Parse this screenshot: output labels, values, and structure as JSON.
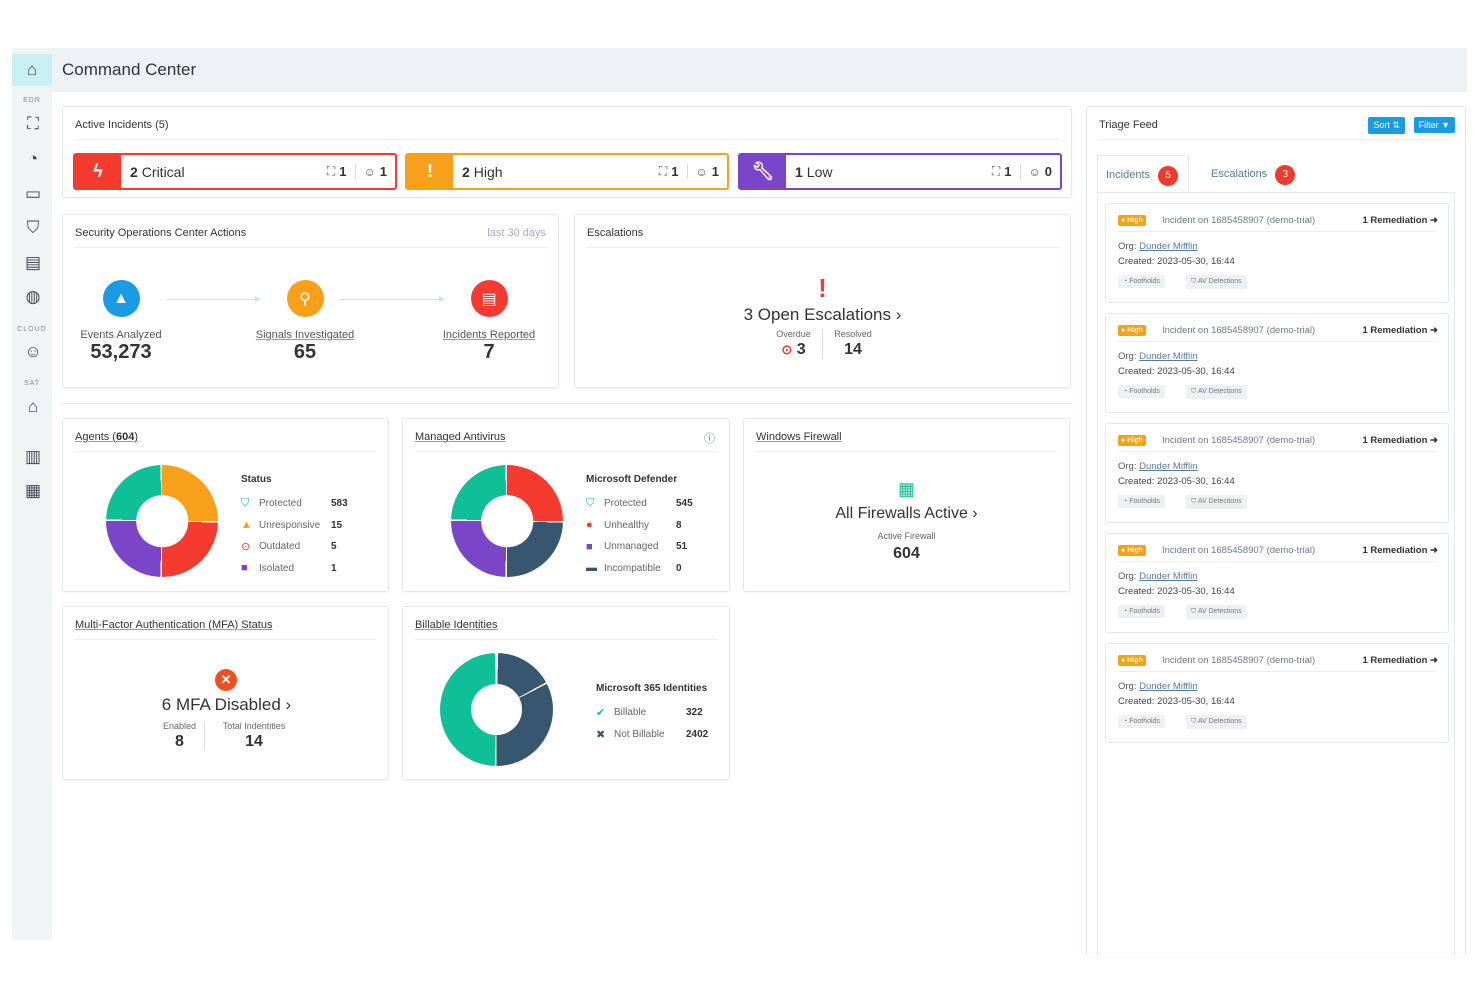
{
  "header": {
    "title": "Command Center"
  },
  "sidebar": {
    "sections": [
      "EDR",
      "CLOUD",
      "SAT"
    ]
  },
  "active_incidents": {
    "title": "Active Incidents (5)",
    "items": [
      {
        "count": "2",
        "label": "Critical",
        "endpoints": "1",
        "users": "1",
        "color": "#f53b30"
      },
      {
        "count": "2",
        "label": "High",
        "endpoints": "1",
        "users": "1",
        "color": "#f8a01a"
      },
      {
        "count": "1",
        "label": "Low",
        "endpoints": "1",
        "users": "0",
        "color": "#7b45c8"
      }
    ]
  },
  "soc": {
    "title": "Security Operations Center Actions",
    "period": "last 30 days",
    "steps": [
      {
        "label": "Events Analyzed",
        "value": "53,273"
      },
      {
        "label": "Signals Investigated",
        "value": "65"
      },
      {
        "label": "Incidents Reported",
        "value": "7"
      }
    ]
  },
  "escalations": {
    "title": "Escalations",
    "headline": "3 Open Escalations",
    "overdue_label": "Overdue",
    "overdue": "3",
    "resolved_label": "Resolved",
    "resolved": "14"
  },
  "agents": {
    "title": "Agents (",
    "count": "604",
    "title_end": ")",
    "legend_title": "Status",
    "items": [
      {
        "label": "Protected",
        "value": "583"
      },
      {
        "label": "Unresponsive",
        "value": "15"
      },
      {
        "label": "Outdated",
        "value": "5"
      },
      {
        "label": "Isolated",
        "value": "1"
      }
    ]
  },
  "antivirus": {
    "title": "Managed Antivirus",
    "legend_title": "Microsoft Defender",
    "items": [
      {
        "label": "Protected",
        "value": "545"
      },
      {
        "label": "Unhealthy",
        "value": "8"
      },
      {
        "label": "Unmanaged",
        "value": "51"
      },
      {
        "label": "Incompatible",
        "value": "0"
      }
    ]
  },
  "firewall": {
    "title": "Windows Firewall",
    "headline": "All Firewalls Active",
    "sub_label": "Active Firewall",
    "value": "604"
  },
  "mfa": {
    "title": "Multi-Factor Authentication (MFA) Status",
    "headline": "6 MFA Disabled",
    "enabled_label": "Enabled",
    "enabled": "8",
    "total_label": "Total Indentities",
    "total": "14"
  },
  "billable": {
    "title": "Billable Identities",
    "legend_title": "Microsoft 365 Identities",
    "items": [
      {
        "label": "Billable",
        "value": "322"
      },
      {
        "label": "Not Billable",
        "value": "2402"
      }
    ]
  },
  "triage": {
    "title": "Triage Feed",
    "sort": "Sort",
    "filter": "Filter",
    "tabs": [
      {
        "label": "Incidents",
        "count": "5"
      },
      {
        "label": "Escalations",
        "count": "3"
      }
    ],
    "cards": [
      {
        "severity": "High",
        "title": "Incident on 1685458907 (demo-trial)",
        "action": "1 Remediation",
        "org_label": "Org:",
        "org": "Dunder Mifflin",
        "created": "Created: 2023-05-30, 16:44",
        "tags": [
          "Footholds",
          "AV Detections"
        ]
      },
      {
        "severity": "High",
        "title": "Incident on 1685458907 (demo-trial)",
        "action": "1 Remediation",
        "org_label": "Org:",
        "org": "Dunder Mifflin",
        "created": "Created: 2023-05-30, 16:44",
        "tags": [
          "Footholds",
          "AV Detections"
        ]
      },
      {
        "severity": "High",
        "title": "Incident on 1685458907 (demo-trial)",
        "action": "1 Remediation",
        "org_label": "Org:",
        "org": "Dunder Mifflin",
        "created": "Created: 2023-05-30, 16:44",
        "tags": [
          "Footholds",
          "AV Detections"
        ]
      },
      {
        "severity": "High",
        "title": "Incident on 1685458907 (demo-trial)",
        "action": "1 Remediation",
        "org_label": "Org:",
        "org": "Dunder Mifflin",
        "created": "Created: 2023-05-30, 16:44",
        "tags": [
          "Footholds",
          "AV Detections"
        ]
      },
      {
        "severity": "High",
        "title": "Incident on 1685458907 (demo-trial)",
        "action": "1 Remediation",
        "org_label": "Org:",
        "org": "Dunder Mifflin",
        "created": "Created: 2023-05-30, 16:44",
        "tags": [
          "Footholds",
          "AV Detections"
        ]
      }
    ]
  }
}
